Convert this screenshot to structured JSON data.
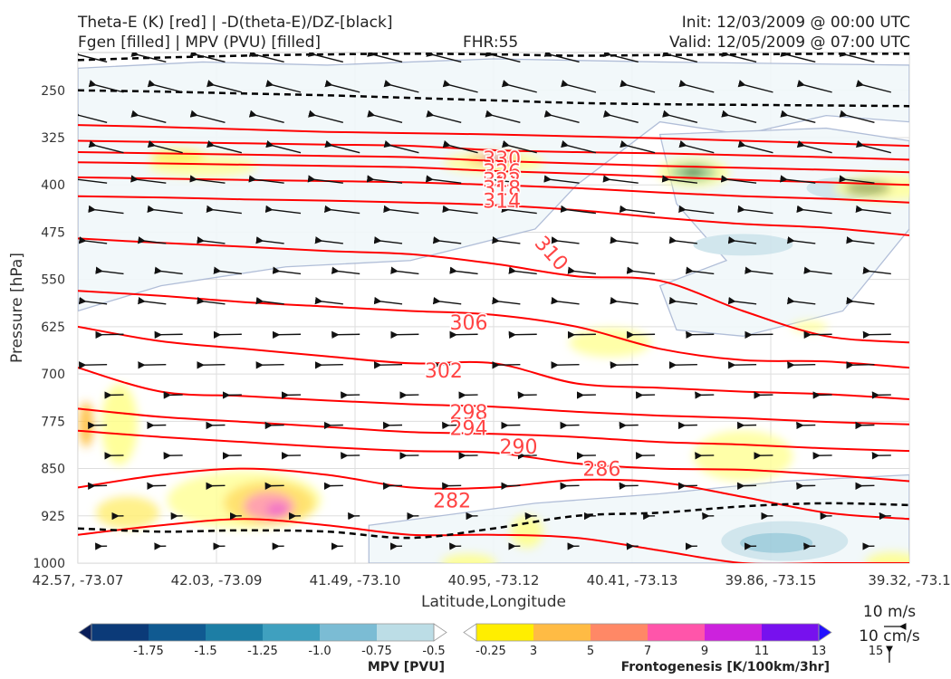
{
  "header": {
    "left_line1": "Theta-E (K) [red] | -D(theta-E)/DZ-[black]",
    "left_line2": "Fgen [filled] | MPV (PVU) [filled]",
    "fhr": "FHR:55",
    "init": "Init: 12/03/2009 @ 00:00 UTC",
    "valid": "Valid: 12/05/2009 @ 07:00 UTC"
  },
  "chart_data": {
    "type": "cross-section",
    "xlabel": "Latitude,Longitude",
    "ylabel": "Pressure [hPa]",
    "x_ticks": [
      "42.57, -73.07",
      "42.03, -73.09",
      "41.49, -73.10",
      "40.95, -73.12",
      "40.41, -73.13",
      "39.86, -73.15",
      "39.32, -73.1"
    ],
    "y_ticks": [
      250,
      325,
      400,
      475,
      550,
      625,
      700,
      775,
      850,
      925,
      1000
    ],
    "ylim": [
      1000,
      190
    ],
    "grid": true,
    "theta_e_contour_labels": [
      {
        "label": "330",
        "x_frac": 0.51,
        "p": 358
      },
      {
        "label": "326",
        "x_frac": 0.51,
        "p": 378
      },
      {
        "label": "322",
        "x_frac": 0.51,
        "p": 392
      },
      {
        "label": "318",
        "x_frac": 0.51,
        "p": 405
      },
      {
        "label": "314",
        "x_frac": 0.51,
        "p": 425
      },
      {
        "label": "310",
        "x_frac": 0.57,
        "p": 508
      },
      {
        "label": "306",
        "x_frac": 0.47,
        "p": 618
      },
      {
        "label": "302",
        "x_frac": 0.44,
        "p": 694
      },
      {
        "label": "298",
        "x_frac": 0.47,
        "p": 760
      },
      {
        "label": "294",
        "x_frac": 0.47,
        "p": 785
      },
      {
        "label": "290",
        "x_frac": 0.53,
        "p": 815
      },
      {
        "label": "286",
        "x_frac": 0.63,
        "p": 850
      },
      {
        "label": "282",
        "x_frac": 0.45,
        "p": 900
      }
    ],
    "theta_e_contours": [
      {
        "value": 334,
        "p": [
          305,
          308,
          312,
          316,
          318,
          320,
          323,
          326,
          330,
          334,
          338
        ]
      },
      {
        "value": 330,
        "p": [
          330,
          332,
          334,
          336,
          338,
          345,
          348,
          350,
          353,
          356,
          360
        ]
      },
      {
        "value": 326,
        "p": [
          348,
          350,
          352,
          354,
          356,
          362,
          366,
          370,
          373,
          376,
          380
        ]
      },
      {
        "value": 322,
        "p": [
          364,
          366,
          368,
          370,
          372,
          378,
          382,
          387,
          392,
          396,
          400
        ]
      },
      {
        "value": 318,
        "p": [
          388,
          390,
          392,
          394,
          396,
          400,
          405,
          412,
          418,
          422,
          428
        ]
      },
      {
        "value": 314,
        "p": [
          418,
          420,
          423,
          425,
          428,
          432,
          440,
          452,
          462,
          468,
          480
        ]
      },
      {
        "value": 310,
        "p": [
          485,
          492,
          498,
          505,
          510,
          525,
          545,
          552,
          600,
          640,
          650
        ]
      },
      {
        "value": 306,
        "p": [
          568,
          576,
          586,
          593,
          600,
          606,
          625,
          660,
          678,
          680,
          690
        ]
      },
      {
        "value": 302,
        "p": [
          625,
          648,
          660,
          672,
          683,
          683,
          715,
          722,
          728,
          732,
          740
        ]
      },
      {
        "value": 298,
        "p": [
          690,
          728,
          735,
          742,
          748,
          752,
          760,
          766,
          770,
          776,
          780
        ]
      },
      {
        "value": 294,
        "p": [
          755,
          768,
          776,
          784,
          792,
          795,
          800,
          808,
          812,
          818,
          822
        ]
      },
      {
        "value": 290,
        "p": [
          790,
          800,
          808,
          816,
          822,
          825,
          842,
          850,
          852,
          860,
          870
        ]
      },
      {
        "value": 286,
        "p": [
          880,
          860,
          850,
          860,
          880,
          880,
          868,
          872,
          895,
          920,
          930
        ]
      },
      {
        "value": 282,
        "p": [
          955,
          940,
          930,
          940,
          955,
          955,
          960,
          980,
          1000,
          1000,
          1000
        ]
      }
    ],
    "stability_contours_dashed": [
      {
        "p": [
          202,
          198,
          195,
          193,
          192,
          193,
          195,
          194,
          193,
          192,
          192
        ]
      },
      {
        "p": [
          250,
          252,
          255,
          258,
          262,
          266,
          270,
          272,
          273,
          274,
          275
        ]
      },
      {
        "p": [
          945,
          950,
          948,
          950,
          960,
          945,
          925,
          920,
          910,
          905,
          908
        ]
      }
    ],
    "mpv_colorbar": {
      "label": "MPV [PVU]",
      "ticks": [
        "-1.75",
        "-1.5",
        "-1.25",
        "-1.0",
        "-0.75",
        "-0.5",
        "-0.25"
      ],
      "colors": [
        "#081d58",
        "#0b3a78",
        "#105a91",
        "#1d7ea5",
        "#3fa0bf",
        "#7bbcd4",
        "#bcdde6",
        "#ffffff"
      ]
    },
    "fgen_colorbar": {
      "label": "Frontogenesis [K/100km/3hr]",
      "ticks": [
        "3",
        "5",
        "7",
        "9",
        "11",
        "13",
        "15"
      ],
      "colors": [
        "#ffffff",
        "#ffee00",
        "#ffbb44",
        "#ff8866",
        "#ff55aa",
        "#cc22dd",
        "#7711ee",
        "#2211ff"
      ]
    },
    "wind_key": {
      "horizontal": "10 m/s",
      "vertical": "10 cm/s"
    }
  }
}
